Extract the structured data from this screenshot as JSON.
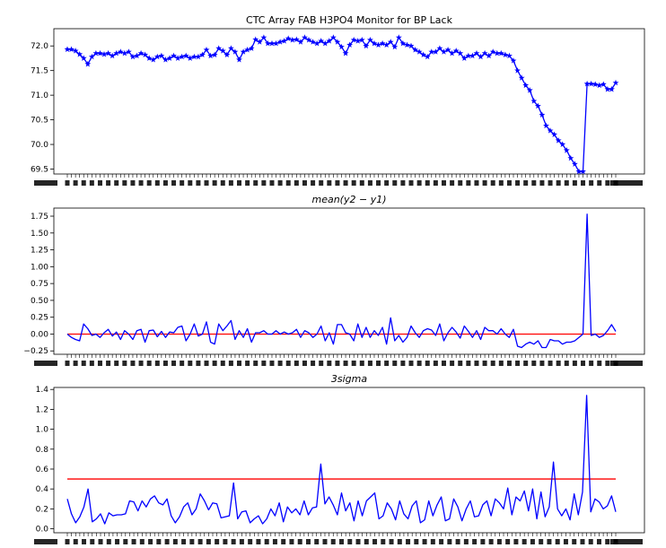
{
  "chart_data": [
    {
      "type": "line",
      "title": "CTC Array FAB H3PO4 Monitor for BP Lack",
      "xlabel": "",
      "ylabel": "",
      "ylim": [
        69.4,
        72.35
      ],
      "yticks": [
        "69.5",
        "70.0",
        "70.5",
        "71.0",
        "71.5",
        "72.0"
      ],
      "ytick_values": [
        69.5,
        70.0,
        70.5,
        71.0,
        71.5,
        72.0
      ],
      "marker": "star",
      "grid": false,
      "series": [
        {
          "color": "#0000ff",
          "values": [
            71.93,
            71.93,
            71.9,
            71.83,
            71.75,
            71.63,
            71.78,
            71.85,
            71.85,
            71.83,
            71.85,
            71.8,
            71.85,
            71.88,
            71.85,
            71.88,
            71.78,
            71.8,
            71.85,
            71.82,
            71.75,
            71.72,
            71.78,
            71.8,
            71.72,
            71.75,
            71.8,
            71.75,
            71.78,
            71.8,
            71.75,
            71.78,
            71.78,
            71.82,
            71.92,
            71.8,
            71.82,
            71.95,
            71.9,
            71.82,
            71.95,
            71.88,
            71.72,
            71.88,
            71.92,
            71.95,
            72.13,
            72.08,
            72.17,
            72.05,
            72.05,
            72.05,
            72.08,
            72.1,
            72.15,
            72.12,
            72.13,
            72.08,
            72.17,
            72.12,
            72.08,
            72.05,
            72.1,
            72.05,
            72.1,
            72.17,
            72.08,
            71.98,
            71.85,
            72.02,
            72.12,
            72.1,
            72.12,
            72.0,
            72.12,
            72.05,
            72.02,
            72.05,
            72.02,
            72.08,
            71.98,
            72.17,
            72.05,
            72.02,
            72.0,
            71.92,
            71.88,
            71.82,
            71.78,
            71.88,
            71.88,
            71.95,
            71.88,
            71.92,
            71.85,
            71.9,
            71.85,
            71.75,
            71.8,
            71.8,
            71.85,
            71.78,
            71.85,
            71.8,
            71.88,
            71.85,
            71.85,
            71.82,
            71.8,
            71.7,
            71.5,
            71.35,
            71.2,
            71.1,
            70.88,
            70.78,
            70.6,
            70.38,
            70.28,
            70.2,
            70.08,
            70.0,
            69.88,
            69.72,
            69.6,
            69.45,
            69.45,
            71.23,
            71.23,
            71.22,
            71.2,
            71.22,
            71.12,
            71.12,
            71.25
          ]
        }
      ]
    },
    {
      "type": "line",
      "title": "mean(y2 − y1)",
      "xlabel": "",
      "ylabel": "",
      "ylim": [
        -0.3,
        1.87
      ],
      "yticks": [
        "−0.25",
        "0.00",
        "0.25",
        "0.50",
        "0.75",
        "1.00",
        "1.25",
        "1.50",
        "1.75"
      ],
      "ytick_values": [
        -0.25,
        0.0,
        0.25,
        0.5,
        0.75,
        1.0,
        1.25,
        1.5,
        1.75
      ],
      "reference_line": {
        "value": 0.0,
        "color": "#ff0000"
      },
      "grid": false,
      "series": [
        {
          "color": "#0000ff",
          "values": [
            0.0,
            -0.05,
            -0.08,
            -0.1,
            0.15,
            0.08,
            -0.02,
            0.0,
            -0.05,
            0.02,
            0.07,
            -0.03,
            0.03,
            -0.08,
            0.05,
            0.0,
            -0.08,
            0.05,
            0.07,
            -0.12,
            0.05,
            0.06,
            -0.04,
            0.04,
            -0.05,
            0.03,
            0.02,
            0.1,
            0.12,
            -0.1,
            0.0,
            0.15,
            -0.03,
            0.0,
            0.18,
            -0.12,
            -0.15,
            0.15,
            0.05,
            0.12,
            0.2,
            -0.08,
            0.05,
            -0.05,
            0.08,
            -0.12,
            0.02,
            0.02,
            0.05,
            0.0,
            0.0,
            0.05,
            0.0,
            0.03,
            0.0,
            0.02,
            0.07,
            -0.05,
            0.05,
            0.02,
            -0.05,
            0.0,
            0.12,
            -0.1,
            0.02,
            -0.15,
            0.14,
            0.14,
            0.02,
            0.0,
            -0.1,
            0.15,
            -0.05,
            0.1,
            -0.05,
            0.05,
            -0.02,
            0.1,
            -0.15,
            0.24,
            -0.1,
            -0.02,
            -0.12,
            -0.05,
            0.12,
            0.02,
            -0.05,
            0.05,
            0.08,
            0.06,
            -0.02,
            0.15,
            -0.1,
            0.02,
            0.1,
            0.03,
            -0.06,
            0.12,
            0.04,
            -0.05,
            0.05,
            -0.08,
            0.1,
            0.05,
            0.05,
            0.0,
            0.08,
            0.0,
            -0.05,
            0.07,
            -0.18,
            -0.2,
            -0.15,
            -0.12,
            -0.15,
            -0.1,
            -0.2,
            -0.2,
            -0.08,
            -0.1,
            -0.1,
            -0.15,
            -0.12,
            -0.12,
            -0.1,
            -0.05,
            0.0,
            1.78,
            -0.02,
            0.0,
            -0.05,
            -0.02,
            0.05,
            0.14,
            0.04
          ]
        }
      ]
    },
    {
      "type": "line",
      "title": "3sigma",
      "xlabel": "",
      "ylabel": "",
      "ylim": [
        -0.04,
        1.42
      ],
      "yticks": [
        "0.0",
        "0.2",
        "0.4",
        "0.6",
        "0.8",
        "1.0",
        "1.2",
        "1.4"
      ],
      "ytick_values": [
        0.0,
        0.2,
        0.4,
        0.6,
        0.8,
        1.0,
        1.2,
        1.4
      ],
      "reference_line": {
        "value": 0.5,
        "color": "#ff0000"
      },
      "grid": false,
      "series": [
        {
          "color": "#0000ff",
          "values": [
            0.3,
            0.15,
            0.06,
            0.12,
            0.22,
            0.4,
            0.07,
            0.1,
            0.15,
            0.05,
            0.16,
            0.13,
            0.14,
            0.14,
            0.15,
            0.28,
            0.27,
            0.18,
            0.28,
            0.22,
            0.3,
            0.33,
            0.26,
            0.24,
            0.3,
            0.13,
            0.06,
            0.12,
            0.22,
            0.26,
            0.14,
            0.2,
            0.35,
            0.28,
            0.19,
            0.26,
            0.25,
            0.11,
            0.12,
            0.13,
            0.46,
            0.1,
            0.17,
            0.18,
            0.06,
            0.1,
            0.13,
            0.05,
            0.1,
            0.2,
            0.13,
            0.26,
            0.07,
            0.22,
            0.16,
            0.2,
            0.14,
            0.28,
            0.14,
            0.21,
            0.22,
            0.65,
            0.25,
            0.32,
            0.24,
            0.14,
            0.36,
            0.18,
            0.26,
            0.08,
            0.28,
            0.13,
            0.28,
            0.32,
            0.36,
            0.1,
            0.13,
            0.26,
            0.2,
            0.09,
            0.28,
            0.15,
            0.1,
            0.23,
            0.28,
            0.06,
            0.09,
            0.28,
            0.13,
            0.24,
            0.32,
            0.08,
            0.1,
            0.3,
            0.22,
            0.08,
            0.2,
            0.28,
            0.12,
            0.13,
            0.24,
            0.28,
            0.13,
            0.3,
            0.26,
            0.2,
            0.41,
            0.14,
            0.32,
            0.28,
            0.38,
            0.18,
            0.4,
            0.1,
            0.37,
            0.12,
            0.22,
            0.67,
            0.2,
            0.13,
            0.2,
            0.09,
            0.35,
            0.14,
            0.37,
            1.34,
            0.17,
            0.3,
            0.27,
            0.2,
            0.23,
            0.33,
            0.17
          ]
        }
      ]
    }
  ]
}
